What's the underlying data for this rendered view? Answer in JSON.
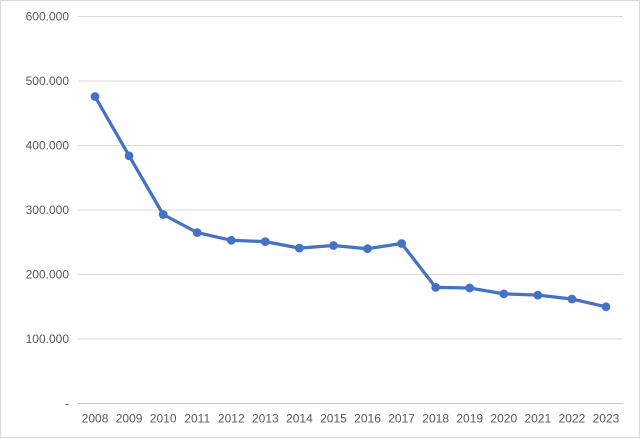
{
  "chart_data": {
    "type": "line",
    "title": "",
    "xlabel": "",
    "ylabel": "",
    "categories": [
      "2008",
      "2009",
      "2010",
      "2011",
      "2012",
      "2013",
      "2014",
      "2015",
      "2016",
      "2017",
      "2018",
      "2019",
      "2020",
      "2021",
      "2022",
      "2023"
    ],
    "series": [
      {
        "name": "",
        "values": [
          476000,
          384000,
          293000,
          265000,
          253000,
          251000,
          241000,
          245000,
          240000,
          248000,
          180000,
          179000,
          170000,
          168000,
          162000,
          150000
        ]
      }
    ],
    "ylim": [
      0,
      600000
    ],
    "ytick_interval": 100000,
    "ytick_labels": [
      "-",
      "100.000",
      "200.000",
      "300.000",
      "400.000",
      "500.000",
      "600.000"
    ],
    "grid": true,
    "legend_position": "none",
    "marker": "circle"
  },
  "colors": {
    "line": "#4472C4",
    "marker": "#4472C4",
    "gridline": "#d9d9d9",
    "axis_line": "#c9c9c9",
    "tick_text": "#595959",
    "background": "#ffffff",
    "chart_border": "#d9d9d9"
  }
}
